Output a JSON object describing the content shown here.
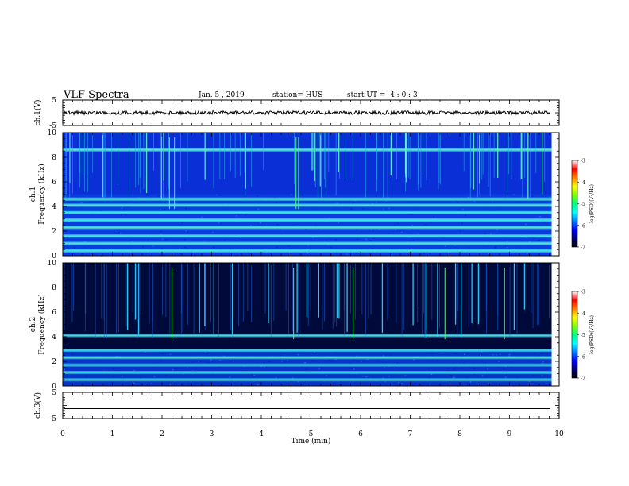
{
  "header": {
    "title": "VLF Spectra",
    "date": "Jan. 5 , 2019",
    "station": "station= HUS",
    "start": "start UT =  4 : 0 : 3"
  },
  "colorbar": {
    "label": "log(PSD)(V²/Hz)",
    "ticks": [
      "-3",
      "-4",
      "-5",
      "-6",
      "-7"
    ],
    "colors": [
      "#000000",
      "#00007f",
      "#0000ff",
      "#0080ff",
      "#00ffff",
      "#00ff80",
      "#80ff00",
      "#ffff00",
      "#ff8000",
      "#ff0000",
      "#ffffff"
    ]
  },
  "chart_data": [
    {
      "type": "line",
      "name": "ch1-waveform",
      "ylabel": "ch.1(V)",
      "ylim": [
        -5,
        5
      ],
      "yticks": [
        "5",
        "-5"
      ],
      "xlim": [
        0,
        10
      ],
      "description_level": 0
    },
    {
      "type": "heatmap",
      "name": "ch1-spectrogram",
      "ylabel": "ch.1\nFrequency (kHz)",
      "ylabel_lines": [
        "ch.1",
        "Frequency (kHz)"
      ],
      "ylim": [
        0,
        10
      ],
      "yticks": [
        "0",
        "2",
        "4",
        "6",
        "8",
        "10"
      ],
      "xlim": [
        0,
        10
      ],
      "value_range": [
        -7,
        -3
      ],
      "bright_bands_khz": [
        0.4,
        1.0,
        1.6,
        2.3,
        2.9,
        3.5,
        4.1,
        4.6,
        8.6
      ],
      "background_below_khz": 5.0
    },
    {
      "type": "heatmap",
      "name": "ch2-spectrogram",
      "ylabel": "ch.2\nFrequency (kHz)",
      "ylabel_lines": [
        "ch.2",
        "Frequency (kHz)"
      ],
      "ylim": [
        0,
        10
      ],
      "yticks": [
        "0",
        "2",
        "4",
        "6",
        "8",
        "10"
      ],
      "xlim": [
        0,
        10
      ],
      "value_range": [
        -7,
        -3
      ],
      "bright_bands_khz": [
        0.5,
        1.1,
        1.7,
        2.3,
        2.9,
        4.1
      ],
      "background_below_khz": 3.0
    },
    {
      "type": "line",
      "name": "ch3-waveform",
      "ylabel": "ch.3(V)",
      "ylim": [
        -5,
        5
      ],
      "yticks": [
        "5",
        "-5"
      ],
      "xlim": [
        0,
        10
      ],
      "value": -1.2
    }
  ],
  "xaxis": {
    "label": "Time (min)",
    "ticks": [
      "0",
      "1",
      "2",
      "3",
      "4",
      "5",
      "6",
      "7",
      "8",
      "9",
      "10"
    ],
    "range": [
      0,
      10
    ],
    "data_end": 9.85
  }
}
